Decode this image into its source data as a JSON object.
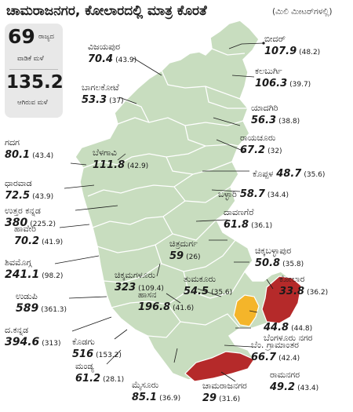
{
  "title": "ಚಾಮರಾಜನಗರ, ಕೋಲಾರದಲ್ಲಿ ಮಾತ್ರ ಕೊರತೆ",
  "unit": "(ಮಿಲಿ ಮೀಟರ್‌ಗಳಲ್ಲಿ)",
  "summary": {
    "normal_value": "69",
    "normal_label_1": "ರಾಜ್ಯದ",
    "normal_label_2": "ವಾಡಿಕೆ ಮಳೆ",
    "actual_value": "135.2",
    "actual_label": "ಆಗಿರುವ ಮಳೆ"
  },
  "colors": {
    "normal": "#c8ddbf",
    "excess_low": "#f4b52a",
    "deficit": "#b52a2a",
    "border": "#ffffff",
    "summary_bg": "#e8e8e8"
  },
  "districts": [
    {
      "name": "ಬೀದರ್",
      "actual": "107.9",
      "normal": "(48.2)",
      "status": "normal"
    },
    {
      "name": "ಕಲಬುರ್ಗಿ",
      "actual": "106.3",
      "normal": "(39.7)",
      "status": "normal"
    },
    {
      "name": "ಯಾದಗಿರಿ",
      "actual": "56.3",
      "normal": "(38.8)",
      "status": "normal"
    },
    {
      "name": "ರಾಯಚೂರು",
      "actual": "67.2",
      "normal": "(32)",
      "status": "normal"
    },
    {
      "name": "ಕೊಪ್ಪಳ",
      "actual": "48.7",
      "normal": "(35.6)",
      "status": "normal"
    },
    {
      "name": "ಬಳ್ಳಾರಿ",
      "actual": "58.7",
      "normal": "(34.4)",
      "status": "normal"
    },
    {
      "name": "ದಾವಣಗೆರೆ",
      "actual": "61.8",
      "normal": "(36.1)",
      "status": "normal"
    },
    {
      "name": "ಚಿಕ್ಕಬಳ್ಳಾಪುರ",
      "actual": "50.8",
      "normal": "(35.8)",
      "status": "normal"
    },
    {
      "name": "ಕೋಲಾರ",
      "actual": "33.8",
      "normal": "(36.2)",
      "status": "deficit"
    },
    {
      "name": "ಬೆಂಗಳೂರು ನಗರ",
      "actual": "44.8",
      "normal": "(44.8)",
      "status": "equal"
    },
    {
      "name": "ಬೆಂ. ಗ್ರಾಮಾಂತರ",
      "actual": "66.7",
      "normal": "(42.4)",
      "status": "normal"
    },
    {
      "name": "ರಾಮನಗರ",
      "actual": "49.2",
      "normal": "(43.4)",
      "status": "normal"
    },
    {
      "name": "ಚಾಮರಾಜನಗರ",
      "actual": "29",
      "normal": "(31.6)",
      "status": "deficit"
    },
    {
      "name": "ಮೈಸೂರು",
      "actual": "85.1",
      "normal": "(36.9)",
      "status": "normal"
    },
    {
      "name": "ಮಂಡ್ಯ",
      "actual": "61.2",
      "normal": "(28.1)",
      "status": "normal"
    },
    {
      "name": "ಕೊಡಗು",
      "actual": "516",
      "normal": "(153.2)",
      "status": "normal"
    },
    {
      "name": "ದ.ಕನ್ನಡ",
      "actual": "394.6",
      "normal": "(313)",
      "status": "normal"
    },
    {
      "name": "ಉಡುಪಿ",
      "actual": "589",
      "normal": "(361.3)",
      "status": "normal"
    },
    {
      "name": "ಹಾಸನ",
      "actual": "196.8",
      "normal": "(41.6)",
      "status": "normal"
    },
    {
      "name": "ತುಮಕೂರು",
      "actual": "54.5",
      "normal": "(35.6)",
      "status": "normal"
    },
    {
      "name": "ಚಿಕ್ಕಮಗಳೂರು",
      "actual": "323",
      "normal": "(109.4)",
      "status": "normal"
    },
    {
      "name": "ಚಿತ್ರದುರ್ಗ",
      "actual": "59",
      "normal": "(26)",
      "status": "normal"
    },
    {
      "name": "ಶಿವಮೊಗ್ಗ",
      "actual": "241.1",
      "normal": "(98.2)",
      "status": "normal"
    },
    {
      "name": "ಹಾವೇರಿ",
      "actual": "70.2",
      "normal": "(41.9)",
      "status": "normal"
    },
    {
      "name": "ಉತ್ತರ ಕನ್ನಡ",
      "actual": "380",
      "normal": "(225.2)",
      "status": "normal"
    },
    {
      "name": "ಧಾರವಾಡ",
      "actual": "72.5",
      "normal": "(43.9)",
      "status": "normal"
    },
    {
      "name": "ಗದಗ",
      "actual": "80.1",
      "normal": "(43.4)",
      "status": "normal"
    },
    {
      "name": "ಬೆಳಗಾವಿ",
      "actual": "111.8",
      "normal": "(42.9)",
      "status": "normal"
    },
    {
      "name": "ಬಾಗಲಕೋಟೆ",
      "actual": "53.3",
      "normal": "(37)",
      "status": "normal"
    },
    {
      "name": "ವಿಜಯಪುರ",
      "actual": "70.4",
      "normal": "(43.9)",
      "status": "normal"
    }
  ]
}
